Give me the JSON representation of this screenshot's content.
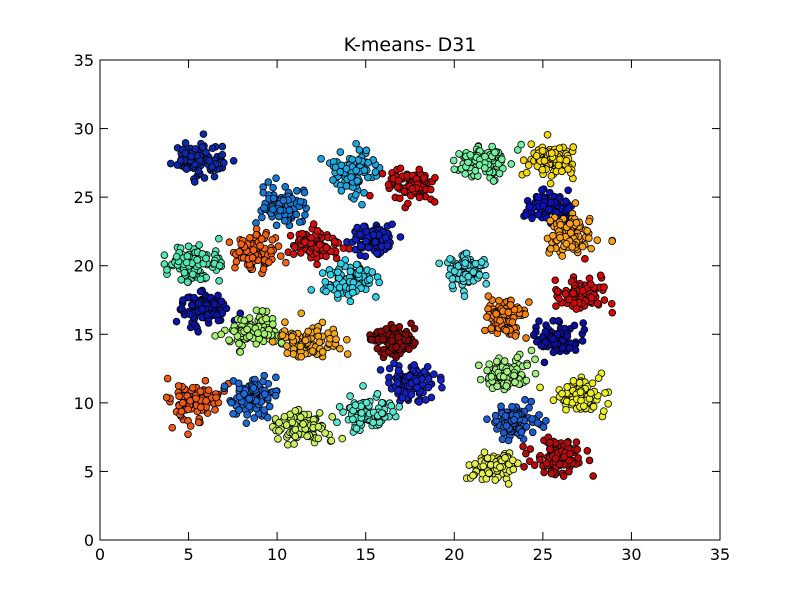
{
  "chart_data": {
    "type": "scatter",
    "title": "K-means- D31",
    "xlabel": "",
    "ylabel": "",
    "xlim": [
      0,
      35
    ],
    "ylim": [
      0,
      35
    ],
    "xticks": [
      0,
      5,
      10,
      15,
      20,
      25,
      30,
      35
    ],
    "yticks": [
      0,
      5,
      10,
      15,
      20,
      25,
      30,
      35
    ],
    "grid": false,
    "legend": "none",
    "colormap": "jet",
    "point_count_per_cluster": 100,
    "clusters": [
      {
        "id": 1,
        "center": [
          5.6,
          27.7
        ],
        "spread": [
          0.75,
          0.55
        ],
        "color": "#0b2aa9"
      },
      {
        "id": 2,
        "center": [
          14.3,
          26.8
        ],
        "spread": [
          0.6,
          0.75
        ],
        "color": "#1aa6e0"
      },
      {
        "id": 3,
        "center": [
          17.6,
          25.8
        ],
        "spread": [
          0.65,
          0.6
        ],
        "color": "#cc0a0a"
      },
      {
        "id": 4,
        "center": [
          21.6,
          27.5
        ],
        "spread": [
          0.75,
          0.55
        ],
        "color": "#70f0a0"
      },
      {
        "id": 5,
        "center": [
          25.4,
          27.6
        ],
        "spread": [
          0.7,
          0.65
        ],
        "color": "#f5d80f"
      },
      {
        "id": 6,
        "center": [
          10.3,
          24.4
        ],
        "spread": [
          0.65,
          0.7
        ],
        "color": "#1378d4"
      },
      {
        "id": 7,
        "center": [
          25.2,
          24.2
        ],
        "spread": [
          0.65,
          0.6
        ],
        "color": "#0a0fbf"
      },
      {
        "id": 8,
        "center": [
          8.8,
          21.0
        ],
        "spread": [
          0.65,
          0.7
        ],
        "color": "#f5620f"
      },
      {
        "id": 9,
        "center": [
          12.1,
          21.5
        ],
        "spread": [
          0.7,
          0.55
        ],
        "color": "#d40f0f"
      },
      {
        "id": 10,
        "center": [
          15.4,
          22.0
        ],
        "spread": [
          0.6,
          0.65
        ],
        "color": "#0f1fc0"
      },
      {
        "id": 11,
        "center": [
          26.6,
          22.2
        ],
        "spread": [
          0.7,
          0.7
        ],
        "color": "#faa118"
      },
      {
        "id": 12,
        "center": [
          5.3,
          20.2
        ],
        "spread": [
          0.75,
          0.6
        ],
        "color": "#50e6b0"
      },
      {
        "id": 13,
        "center": [
          14.1,
          18.9
        ],
        "spread": [
          0.7,
          0.6
        ],
        "color": "#2ed0e8"
      },
      {
        "id": 14,
        "center": [
          20.6,
          19.6
        ],
        "spread": [
          0.5,
          0.65
        ],
        "color": "#4ad8e0"
      },
      {
        "id": 15,
        "center": [
          5.9,
          16.8
        ],
        "spread": [
          0.65,
          0.65
        ],
        "color": "#0a14a8"
      },
      {
        "id": 16,
        "center": [
          27.2,
          17.9
        ],
        "spread": [
          0.65,
          0.65
        ],
        "color": "#d40a0a"
      },
      {
        "id": 17,
        "center": [
          8.6,
          15.2
        ],
        "spread": [
          0.7,
          0.6
        ],
        "color": "#a6f06a"
      },
      {
        "id": 18,
        "center": [
          11.9,
          14.5
        ],
        "spread": [
          0.7,
          0.65
        ],
        "color": "#f5a51a"
      },
      {
        "id": 19,
        "center": [
          16.4,
          14.6
        ],
        "spread": [
          0.6,
          0.6
        ],
        "color": "#8a0a0a"
      },
      {
        "id": 20,
        "center": [
          22.9,
          16.2
        ],
        "spread": [
          0.55,
          0.65
        ],
        "color": "#f77f10"
      },
      {
        "id": 21,
        "center": [
          25.9,
          14.7
        ],
        "spread": [
          0.7,
          0.55
        ],
        "color": "#0a10a0"
      },
      {
        "id": 22,
        "center": [
          17.5,
          11.5
        ],
        "spread": [
          0.65,
          0.65
        ],
        "color": "#1322c8"
      },
      {
        "id": 23,
        "center": [
          22.9,
          12.0
        ],
        "spread": [
          0.6,
          0.6
        ],
        "color": "#a2f080"
      },
      {
        "id": 24,
        "center": [
          5.4,
          10.2
        ],
        "spread": [
          0.65,
          0.65
        ],
        "color": "#f05a14"
      },
      {
        "id": 25,
        "center": [
          8.6,
          10.3
        ],
        "spread": [
          0.65,
          0.65
        ],
        "color": "#1a6bd8"
      },
      {
        "id": 26,
        "center": [
          11.4,
          8.3
        ],
        "spread": [
          0.7,
          0.65
        ],
        "color": "#c8f05a"
      },
      {
        "id": 27,
        "center": [
          15.1,
          9.3
        ],
        "spread": [
          0.7,
          0.6
        ],
        "color": "#58e6cc"
      },
      {
        "id": 28,
        "center": [
          23.4,
          8.6
        ],
        "spread": [
          0.65,
          0.6
        ],
        "color": "#1c5ed0"
      },
      {
        "id": 29,
        "center": [
          27.1,
          10.4
        ],
        "spread": [
          0.6,
          0.6
        ],
        "color": "#ecf020"
      },
      {
        "id": 30,
        "center": [
          22.1,
          5.4
        ],
        "spread": [
          0.65,
          0.55
        ],
        "color": "#e6f04a"
      },
      {
        "id": 31,
        "center": [
          25.9,
          6.0
        ],
        "spread": [
          0.65,
          0.6
        ],
        "color": "#b80a0a"
      }
    ]
  }
}
